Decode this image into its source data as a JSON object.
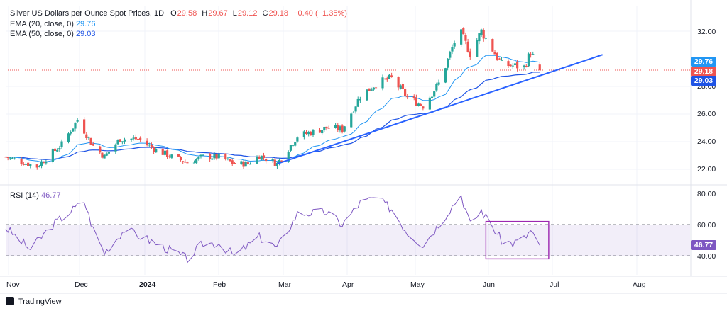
{
  "legend": {
    "title": "Silver US Dollars per Ounce Spot Prices, 1D",
    "open_label": "O",
    "open": "29.58",
    "high_label": "H",
    "high": "29.67",
    "low_label": "L",
    "low": "29.12",
    "close_label": "C",
    "close": "29.18",
    "change": "−0.40 (−1.35%)",
    "ema20_label": "EMA (20, close, 0)",
    "ema20_value": "29.76",
    "ema50_label": "EMA (50, close, 0)",
    "ema50_value": "29.03",
    "rsi_label": "RSI (14)",
    "rsi_value": "46.77"
  },
  "price_axis": [
    "32.00",
    "28.00",
    "26.00",
    "24.00",
    "22.00"
  ],
  "rsi_axis": [
    "80.00",
    "60.00",
    "40.00"
  ],
  "price_tags": {
    "ema20": "29.76",
    "close": "29.18",
    "ema50": "29.03"
  },
  "rsi_tag": "46.77",
  "months": [
    "Nov",
    "Dec",
    "2024",
    "Feb",
    "Mar",
    "Apr",
    "May",
    "Jun",
    "Jul",
    "Aug"
  ],
  "footer": {
    "brand": "TradingView"
  },
  "colors": {
    "up": "#26a69a",
    "down": "#ef5350",
    "ema20": "#2196f3",
    "ema50": "#1e53e5",
    "rsi": "#7e57c2",
    "trendline": "#2962ff",
    "box": "#9c27b0"
  },
  "chart_data": [
    {
      "type": "candlestick",
      "title": "Silver US Dollars per Ounce Spot Prices, 1D",
      "ylim": [
        21.2,
        33.2
      ],
      "x_range": [
        "2023-10-30",
        "2024-08-30"
      ],
      "ohlc_anchors": [
        {
          "date": "2023-10-30",
          "close": 22.9
        },
        {
          "date": "2023-11-13",
          "close": 22.2
        },
        {
          "date": "2023-11-24",
          "close": 23.8
        },
        {
          "date": "2023-12-01",
          "close": 25.6
        },
        {
          "date": "2023-12-08",
          "close": 23.7
        },
        {
          "date": "2023-12-13",
          "close": 22.9
        },
        {
          "date": "2023-12-20",
          "close": 24.2
        },
        {
          "date": "2023-12-28",
          "close": 24.2
        },
        {
          "date": "2024-01-05",
          "close": 23.4
        },
        {
          "date": "2024-01-12",
          "close": 22.9
        },
        {
          "date": "2024-01-19",
          "close": 22.5
        },
        {
          "date": "2024-01-26",
          "close": 22.9
        },
        {
          "date": "2024-02-02",
          "close": 22.9
        },
        {
          "date": "2024-02-09",
          "close": 22.4
        },
        {
          "date": "2024-02-15",
          "close": 22.4
        },
        {
          "date": "2024-02-20",
          "close": 23.0
        },
        {
          "date": "2024-02-28",
          "close": 22.4
        },
        {
          "date": "2024-03-08",
          "close": 24.4
        },
        {
          "date": "2024-03-21",
          "close": 25.0
        },
        {
          "date": "2024-03-28",
          "close": 24.9
        },
        {
          "date": "2024-04-05",
          "close": 27.3
        },
        {
          "date": "2024-04-12",
          "close": 28.2
        },
        {
          "date": "2024-04-19",
          "close": 28.6
        },
        {
          "date": "2024-04-26",
          "close": 27.2
        },
        {
          "date": "2024-05-03",
          "close": 26.6
        },
        {
          "date": "2024-05-10",
          "close": 28.2
        },
        {
          "date": "2024-05-17",
          "close": 31.2
        },
        {
          "date": "2024-05-20",
          "close": 31.8
        },
        {
          "date": "2024-05-24",
          "close": 30.4
        },
        {
          "date": "2024-05-29",
          "close": 32.0
        },
        {
          "date": "2024-06-07",
          "close": 29.6
        },
        {
          "date": "2024-06-12",
          "close": 29.5
        },
        {
          "date": "2024-06-17",
          "close": 29.4
        },
        {
          "date": "2024-06-20",
          "close": 30.5
        },
        {
          "date": "2024-06-24",
          "close": 29.18
        }
      ],
      "ema20_last": 29.76,
      "ema50_last": 29.03,
      "trendline": [
        {
          "date": "2024-02-28",
          "y": 22.4
        },
        {
          "date": "2024-07-22",
          "y": 30.3
        }
      ]
    },
    {
      "type": "line",
      "title": "RSI (14)",
      "ylim": [
        30,
        82
      ],
      "bands": [
        40,
        60
      ],
      "x_range": [
        "2023-10-30",
        "2024-08-30"
      ],
      "rsi_anchors": [
        {
          "date": "2023-10-30",
          "value": 58
        },
        {
          "date": "2023-11-10",
          "value": 44
        },
        {
          "date": "2023-11-20",
          "value": 60
        },
        {
          "date": "2023-12-04",
          "value": 75
        },
        {
          "date": "2023-12-08",
          "value": 57
        },
        {
          "date": "2023-12-13",
          "value": 42
        },
        {
          "date": "2023-12-22",
          "value": 57
        },
        {
          "date": "2024-01-05",
          "value": 48
        },
        {
          "date": "2024-01-19",
          "value": 38
        },
        {
          "date": "2024-01-26",
          "value": 48
        },
        {
          "date": "2024-02-02",
          "value": 48
        },
        {
          "date": "2024-02-09",
          "value": 40
        },
        {
          "date": "2024-02-20",
          "value": 52
        },
        {
          "date": "2024-02-28",
          "value": 45
        },
        {
          "date": "2024-03-08",
          "value": 67
        },
        {
          "date": "2024-03-21",
          "value": 68
        },
        {
          "date": "2024-03-28",
          "value": 60
        },
        {
          "date": "2024-04-05",
          "value": 74
        },
        {
          "date": "2024-04-12",
          "value": 77
        },
        {
          "date": "2024-04-19",
          "value": 70
        },
        {
          "date": "2024-04-26",
          "value": 55
        },
        {
          "date": "2024-05-03",
          "value": 47
        },
        {
          "date": "2024-05-10",
          "value": 60
        },
        {
          "date": "2024-05-17",
          "value": 74
        },
        {
          "date": "2024-05-20",
          "value": 79
        },
        {
          "date": "2024-05-24",
          "value": 60
        },
        {
          "date": "2024-05-29",
          "value": 69
        },
        {
          "date": "2024-06-07",
          "value": 50
        },
        {
          "date": "2024-06-12",
          "value": 48
        },
        {
          "date": "2024-06-17",
          "value": 51
        },
        {
          "date": "2024-06-20",
          "value": 56
        },
        {
          "date": "2024-06-24",
          "value": 46.77
        }
      ],
      "highlight_box": {
        "from": "2024-05-31",
        "to": "2024-06-28",
        "y_from": 38,
        "y_to": 62
      }
    }
  ]
}
